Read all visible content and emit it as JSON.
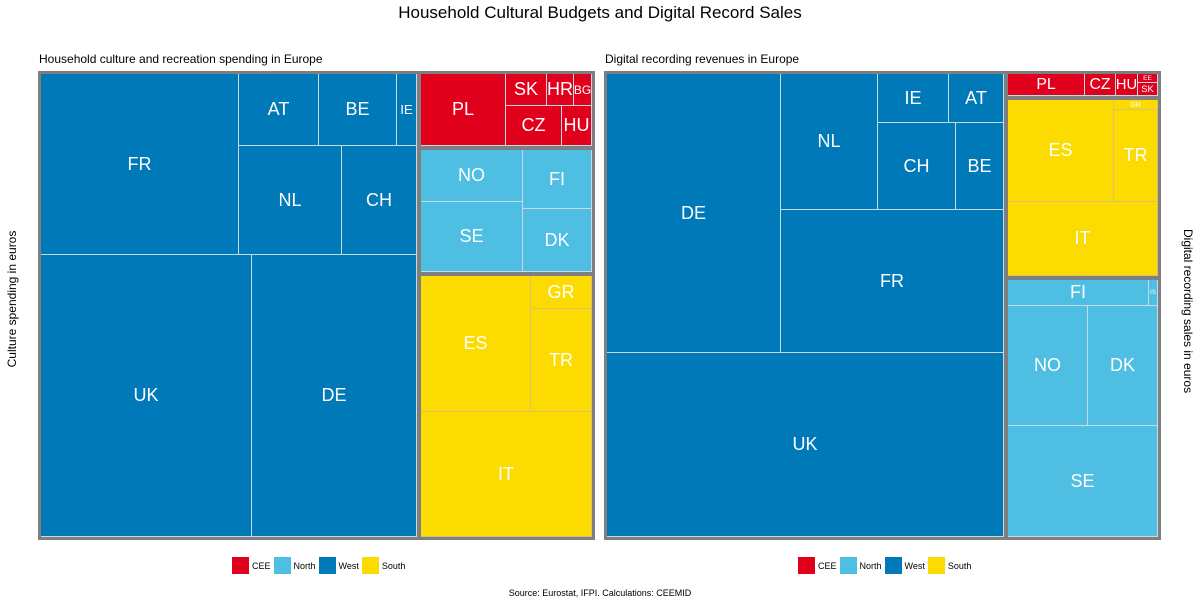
{
  "title": "Household Cultural Budgets and Digital Record Sales",
  "source": "Source: Eurostat, IFPI. Calculations: CEEMID",
  "colors": {
    "CEE": "#e0001c",
    "North": "#4fbee3",
    "West": "#0079b9",
    "South": "#fcdc00",
    "border": "#7f7f7f",
    "divider": "#c9d9e6"
  },
  "chart_data": [
    {
      "type": "treemap",
      "title": "Household culture and recreation spending in Europe",
      "ylabel": "Culture spending in euros",
      "value_unit": "relative area (estimated)",
      "legend": {
        "placement": "bottom",
        "entries": [
          "CEE",
          "North",
          "West",
          "South"
        ]
      },
      "groups": [
        {
          "name": "West",
          "items": [
            {
              "label": "UK",
              "value": 59502
            },
            {
              "label": "DE",
              "value": 46530
            },
            {
              "label": "FR",
              "value": 35838
            },
            {
              "label": "NL",
              "value": 11227
            },
            {
              "label": "CH",
              "value": 8175
            },
            {
              "label": "AT",
              "value": 5760
            },
            {
              "label": "BE",
              "value": 5616
            },
            {
              "label": "IE",
              "value": 1440
            }
          ]
        },
        {
          "name": "CEE",
          "items": [
            {
              "label": "PL",
              "value": 6120
            },
            {
              "label": "CZ",
              "value": 2240
            },
            {
              "label": "SK",
              "value": 1344
            },
            {
              "label": "HU",
              "value": 1200
            },
            {
              "label": "HR",
              "value": 864
            },
            {
              "label": "BG",
              "value": 544
            }
          ]
        },
        {
          "name": "North",
          "items": [
            {
              "label": "SE",
              "value": 7070
            },
            {
              "label": "NO",
              "value": 5252
            },
            {
              "label": "DK",
              "value": 4347
            },
            {
              "label": "FI",
              "value": 3933
            }
          ]
        },
        {
          "name": "South",
          "items": [
            {
              "label": "IT",
              "value": 21204
            },
            {
              "label": "ES",
              "value": 14850
            },
            {
              "label": "TR",
              "value": 6120
            },
            {
              "label": "GR",
              "value": 1980
            }
          ]
        }
      ]
    },
    {
      "type": "treemap",
      "title": "Digital recording revenues in Europe",
      "ylabel": "Digital recording sales in euros",
      "value_unit": "relative area (estimated)",
      "legend": {
        "placement": "bottom",
        "entries": [
          "CEE",
          "North",
          "West",
          "South"
        ]
      },
      "groups": [
        {
          "name": "West",
          "items": [
            {
              "label": "UK",
              "value": 72651
            },
            {
              "label": "DE",
              "value": 48546
            },
            {
              "label": "FR",
              "value": 32112
            },
            {
              "label": "NL",
              "value": 13192
            },
            {
              "label": "CH",
              "value": 6786
            },
            {
              "label": "BE",
              "value": 4176
            },
            {
              "label": "IE",
              "value": 3479
            },
            {
              "label": "AT",
              "value": 2695
            }
          ]
        },
        {
          "name": "CEE",
          "items": [
            {
              "label": "PL",
              "value": 1694
            },
            {
              "label": "CZ",
              "value": 660
            },
            {
              "label": "HU",
              "value": 484
            },
            {
              "label": "SK",
              "value": 247
            },
            {
              "label": "EE",
              "value": 171
            }
          ]
        },
        {
          "name": "South",
          "items": [
            {
              "label": "IT",
              "value": 11174
            },
            {
              "label": "ES",
              "value": 10812
            },
            {
              "label": "TR",
              "value": 4140
            },
            {
              "label": "GR",
              "value": 450
            }
          ]
        },
        {
          "name": "North",
          "items": [
            {
              "label": "SE",
              "value": 16610
            },
            {
              "label": "NO",
              "value": 9520
            },
            {
              "label": "DK",
              "value": 8449
            },
            {
              "label": "FI",
              "value": 3640
            },
            {
              "label": "IS",
              "value": 234
            }
          ]
        }
      ]
    }
  ]
}
